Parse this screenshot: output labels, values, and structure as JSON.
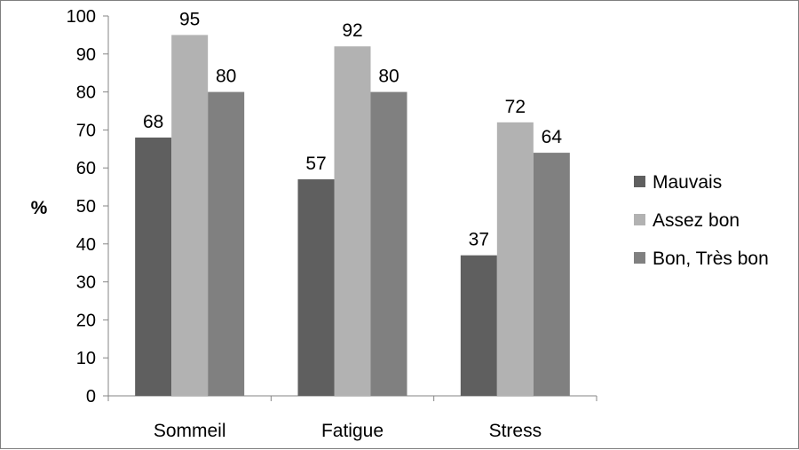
{
  "chart_data": {
    "type": "bar",
    "title": "",
    "xlabel": "",
    "ylabel": "%",
    "ylim": [
      0,
      100
    ],
    "yticks": [
      0,
      10,
      20,
      30,
      40,
      50,
      60,
      70,
      80,
      90,
      100
    ],
    "categories": [
      "Sommeil",
      "Fatigue",
      "Stress"
    ],
    "series": [
      {
        "name": "Mauvais",
        "color": "#5f5f5f",
        "values": [
          68,
          57,
          37
        ]
      },
      {
        "name": "Assez bon",
        "color": "#b2b2b2",
        "values": [
          95,
          92,
          72
        ]
      },
      {
        "name": "Bon, Très bon",
        "color": "#808080",
        "values": [
          80,
          80,
          64
        ]
      }
    ],
    "grid": false,
    "legend_position": "right",
    "data_labels": true
  }
}
